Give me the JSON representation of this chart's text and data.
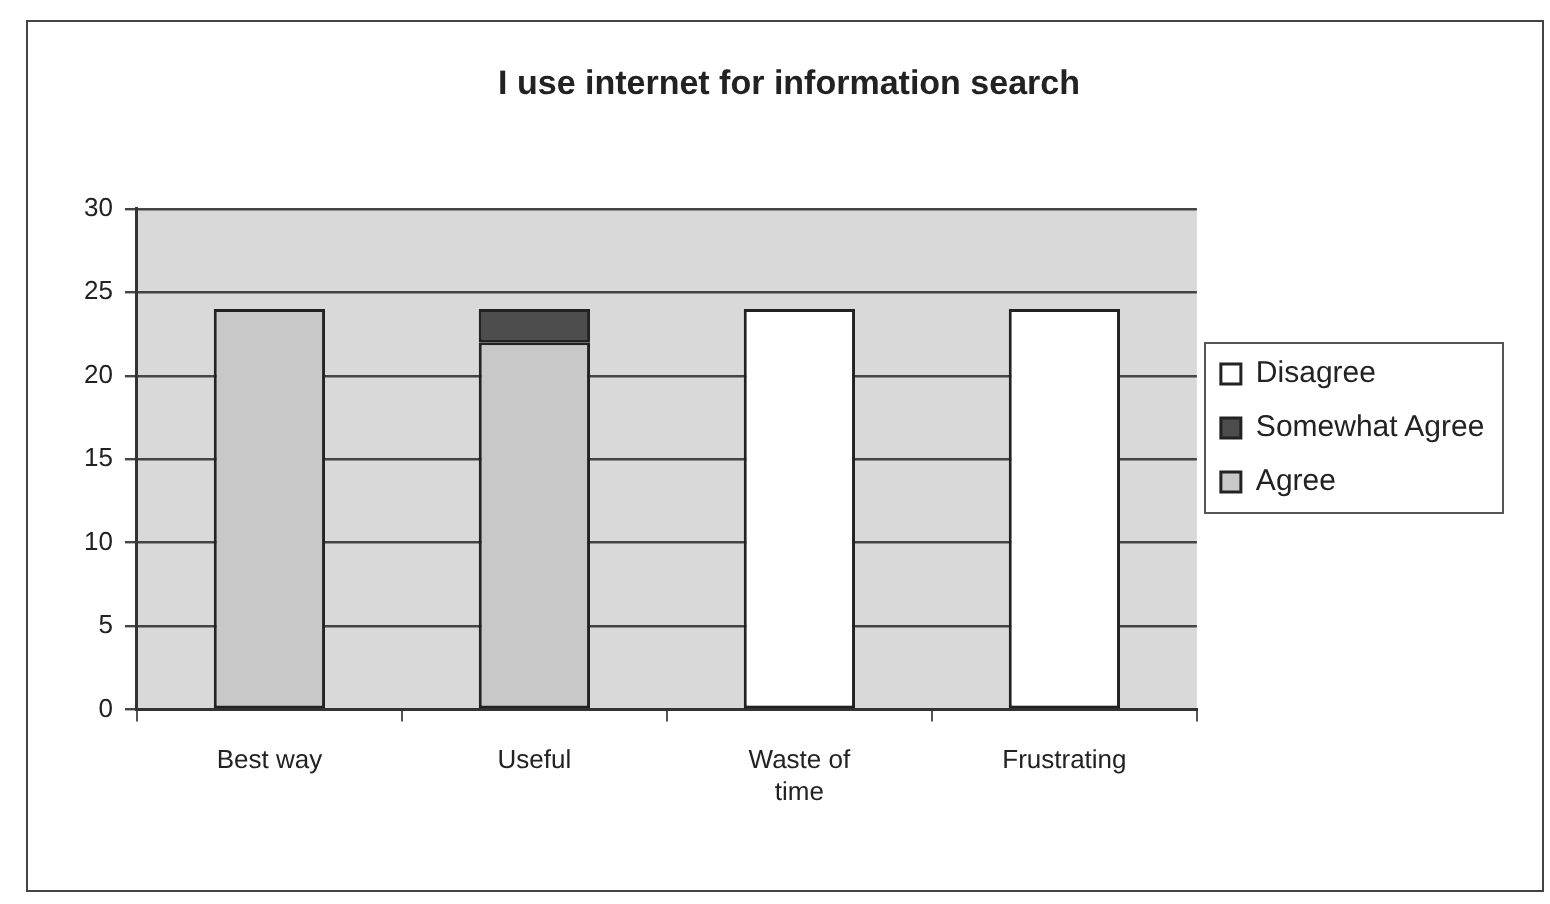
{
  "chart_data": {
    "type": "bar",
    "title": "I use internet for information search",
    "categories": [
      "Best way",
      "Useful",
      "Waste of time",
      "Frustrating"
    ],
    "series": [
      {
        "name": "Agree",
        "color": "#c8c8c8",
        "values": [
          24,
          22,
          null,
          null
        ]
      },
      {
        "name": "Somewhat Agree",
        "color": "#4d4d4d",
        "values": [
          null,
          2,
          null,
          null
        ]
      },
      {
        "name": "Disagree",
        "color": "#ffffff",
        "values": [
          null,
          null,
          24,
          24
        ]
      }
    ],
    "stacked": true,
    "ylim": [
      0,
      30
    ],
    "yticks": [
      0,
      5,
      10,
      15,
      20,
      25,
      30
    ],
    "grid": "y",
    "legend": "right"
  }
}
